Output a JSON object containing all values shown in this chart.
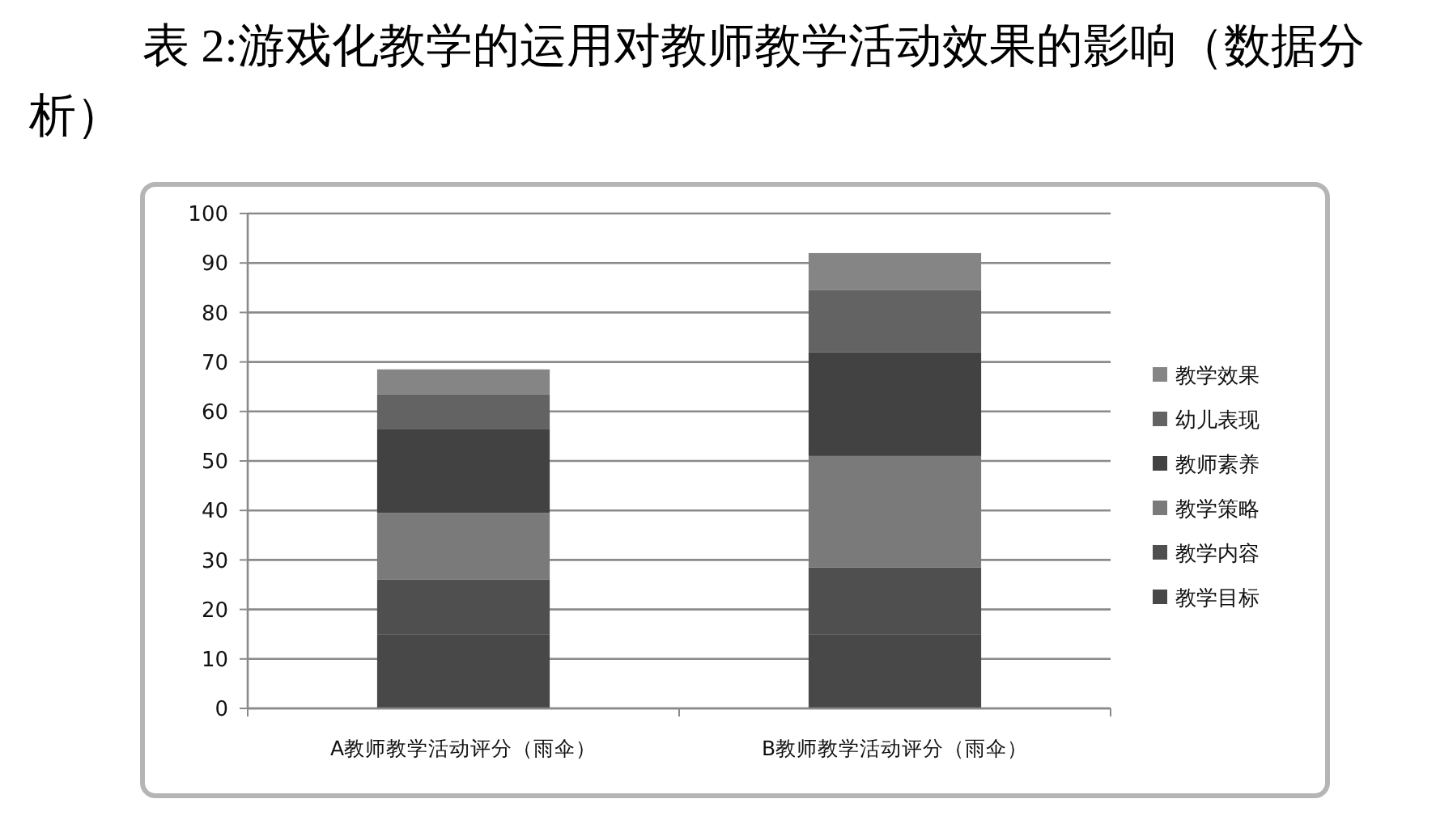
{
  "chart_data": {
    "type": "bar",
    "stacked": true,
    "title": "表 2:游戏化教学的运用对教师教学活动效果的影响（数据分析）",
    "categories": [
      "A教师教学活动评分（雨伞）",
      "B教师教学活动评分（雨伞）"
    ],
    "series": [
      {
        "name": "教学目标",
        "color": "#484848",
        "values": [
          15,
          15
        ]
      },
      {
        "name": "教学内容",
        "color": "#4f4f4f",
        "values": [
          11,
          13.5
        ]
      },
      {
        "name": "教学策略",
        "color": "#7a7a7a",
        "values": [
          13.5,
          22.5
        ]
      },
      {
        "name": "教师素养",
        "color": "#424242",
        "values": [
          17,
          21
        ]
      },
      {
        "name": "幼儿表现",
        "color": "#636363",
        "values": [
          7,
          12.5
        ]
      },
      {
        "name": "教学效果",
        "color": "#858585",
        "values": [
          5,
          7.5
        ]
      }
    ],
    "ylim": [
      0,
      100
    ],
    "yticks": [
      0,
      10,
      20,
      30,
      40,
      50,
      60,
      70,
      80,
      90,
      100
    ],
    "grid": "y",
    "legend": "right"
  }
}
